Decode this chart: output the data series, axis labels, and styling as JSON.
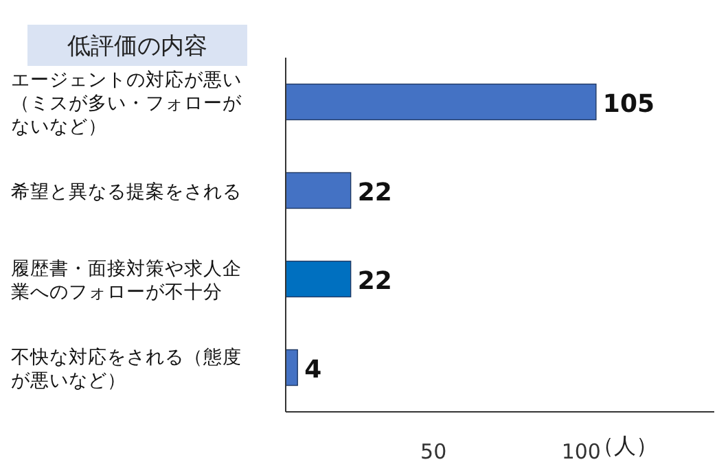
{
  "chart_data": {
    "type": "bar",
    "orientation": "horizontal",
    "title": "低評価の内容",
    "xlabel": "（人）",
    "categories": [
      "エージェントの対応が悪い（ミスが多い・フォローがないなど）",
      "希望と異なる提案をされる",
      "履歴書・面接対策や求人企業へのフォローが不十分",
      "不快な対応をされる（態度が悪いなど）"
    ],
    "values": [
      105,
      22,
      22,
      4
    ],
    "colors": [
      "#4472c4",
      "#4472c4",
      "#0070c0",
      "#4472c4"
    ],
    "xlim": [
      0,
      145
    ],
    "xticks": [
      50,
      100
    ],
    "data_labels": true,
    "grid": false
  }
}
